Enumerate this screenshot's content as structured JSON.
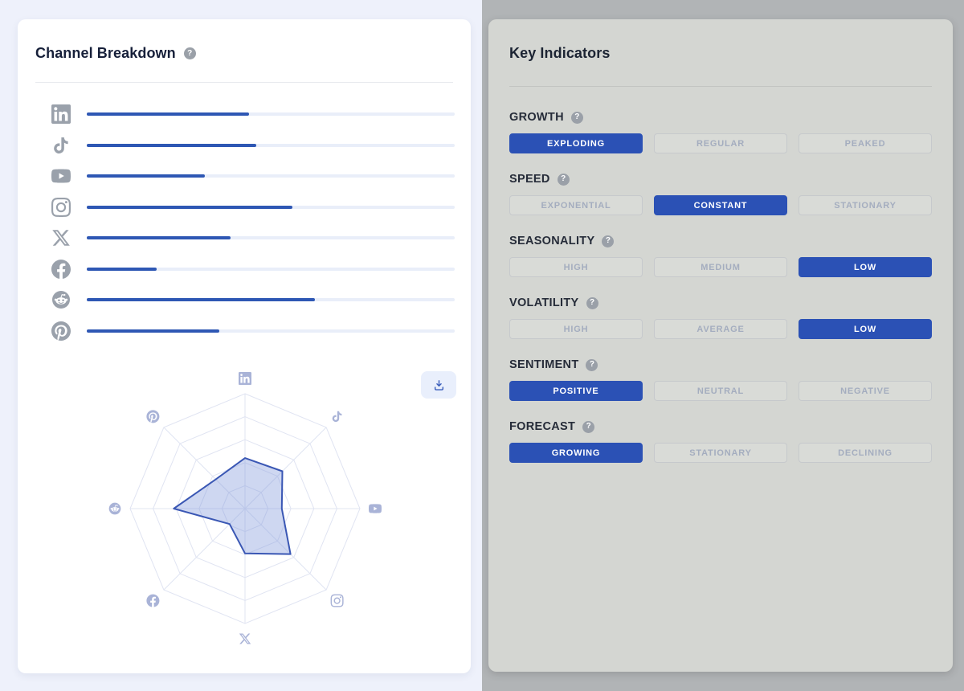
{
  "glyphs": {
    "help": "?"
  },
  "colors": {
    "accent_blue": "#2b51b5",
    "bar_blue": "#2e57b4",
    "radar_stroke": "#3a57b4",
    "radar_fill": "#7d97d9",
    "left_card_bg": "#ffffff",
    "right_card_bg": "#d4d6d2",
    "page_left_bg": "#eef1fb",
    "page_right_bg": "#b1b4b6"
  },
  "left": {
    "title": "Channel Breakdown",
    "help_icon": "question-mark-icon",
    "download_icon": "download-icon",
    "channels": [
      {
        "name": "LinkedIn",
        "icon": "linkedin",
        "value": 44
      },
      {
        "name": "TikTok",
        "icon": "tiktok",
        "value": 46
      },
      {
        "name": "YouTube",
        "icon": "youtube",
        "value": 32
      },
      {
        "name": "Instagram",
        "icon": "instagram",
        "value": 56
      },
      {
        "name": "X",
        "icon": "x",
        "value": 39
      },
      {
        "name": "Facebook",
        "icon": "facebook",
        "value": 19
      },
      {
        "name": "Reddit",
        "icon": "reddit",
        "value": 62
      },
      {
        "name": "Pinterest",
        "icon": "pinterest",
        "value": 36
      }
    ]
  },
  "right": {
    "title": "Key Indicators",
    "sections": [
      {
        "label": "GROWTH",
        "options": [
          "EXPLODING",
          "REGULAR",
          "PEAKED"
        ],
        "selected": "EXPLODING"
      },
      {
        "label": "SPEED",
        "options": [
          "EXPONENTIAL",
          "CONSTANT",
          "STATIONARY"
        ],
        "selected": "CONSTANT"
      },
      {
        "label": "SEASONALITY",
        "options": [
          "HIGH",
          "MEDIUM",
          "LOW"
        ],
        "selected": "LOW"
      },
      {
        "label": "VOLATILITY",
        "options": [
          "HIGH",
          "AVERAGE",
          "LOW"
        ],
        "selected": "LOW"
      },
      {
        "label": "SENTIMENT",
        "options": [
          "POSITIVE",
          "NEUTRAL",
          "NEGATIVE"
        ],
        "selected": "POSITIVE"
      },
      {
        "label": "FORECAST",
        "options": [
          "GROWING",
          "STATIONARY",
          "DECLINING"
        ],
        "selected": "GROWING"
      }
    ]
  },
  "chart_data": [
    {
      "type": "bar",
      "orientation": "horizontal",
      "title": "Channel Breakdown",
      "categories": [
        "LinkedIn",
        "TikTok",
        "YouTube",
        "Instagram",
        "X",
        "Facebook",
        "Reddit",
        "Pinterest"
      ],
      "values": [
        44,
        46,
        32,
        56,
        39,
        19,
        62,
        36
      ],
      "xlabel": "",
      "ylabel": "",
      "xlim": [
        0,
        100
      ],
      "grid": false,
      "legend": false,
      "value_labels": false
    },
    {
      "type": "radar",
      "categories": [
        "LinkedIn",
        "TikTok",
        "YouTube",
        "Instagram",
        "X",
        "Facebook",
        "Reddit",
        "Pinterest"
      ],
      "values": [
        44,
        46,
        32,
        56,
        39,
        19,
        62,
        36
      ],
      "rlim": [
        0,
        100
      ],
      "rings": 5,
      "grid": true,
      "legend": false,
      "start_angle_deg": -90,
      "direction": "clockwise"
    }
  ]
}
